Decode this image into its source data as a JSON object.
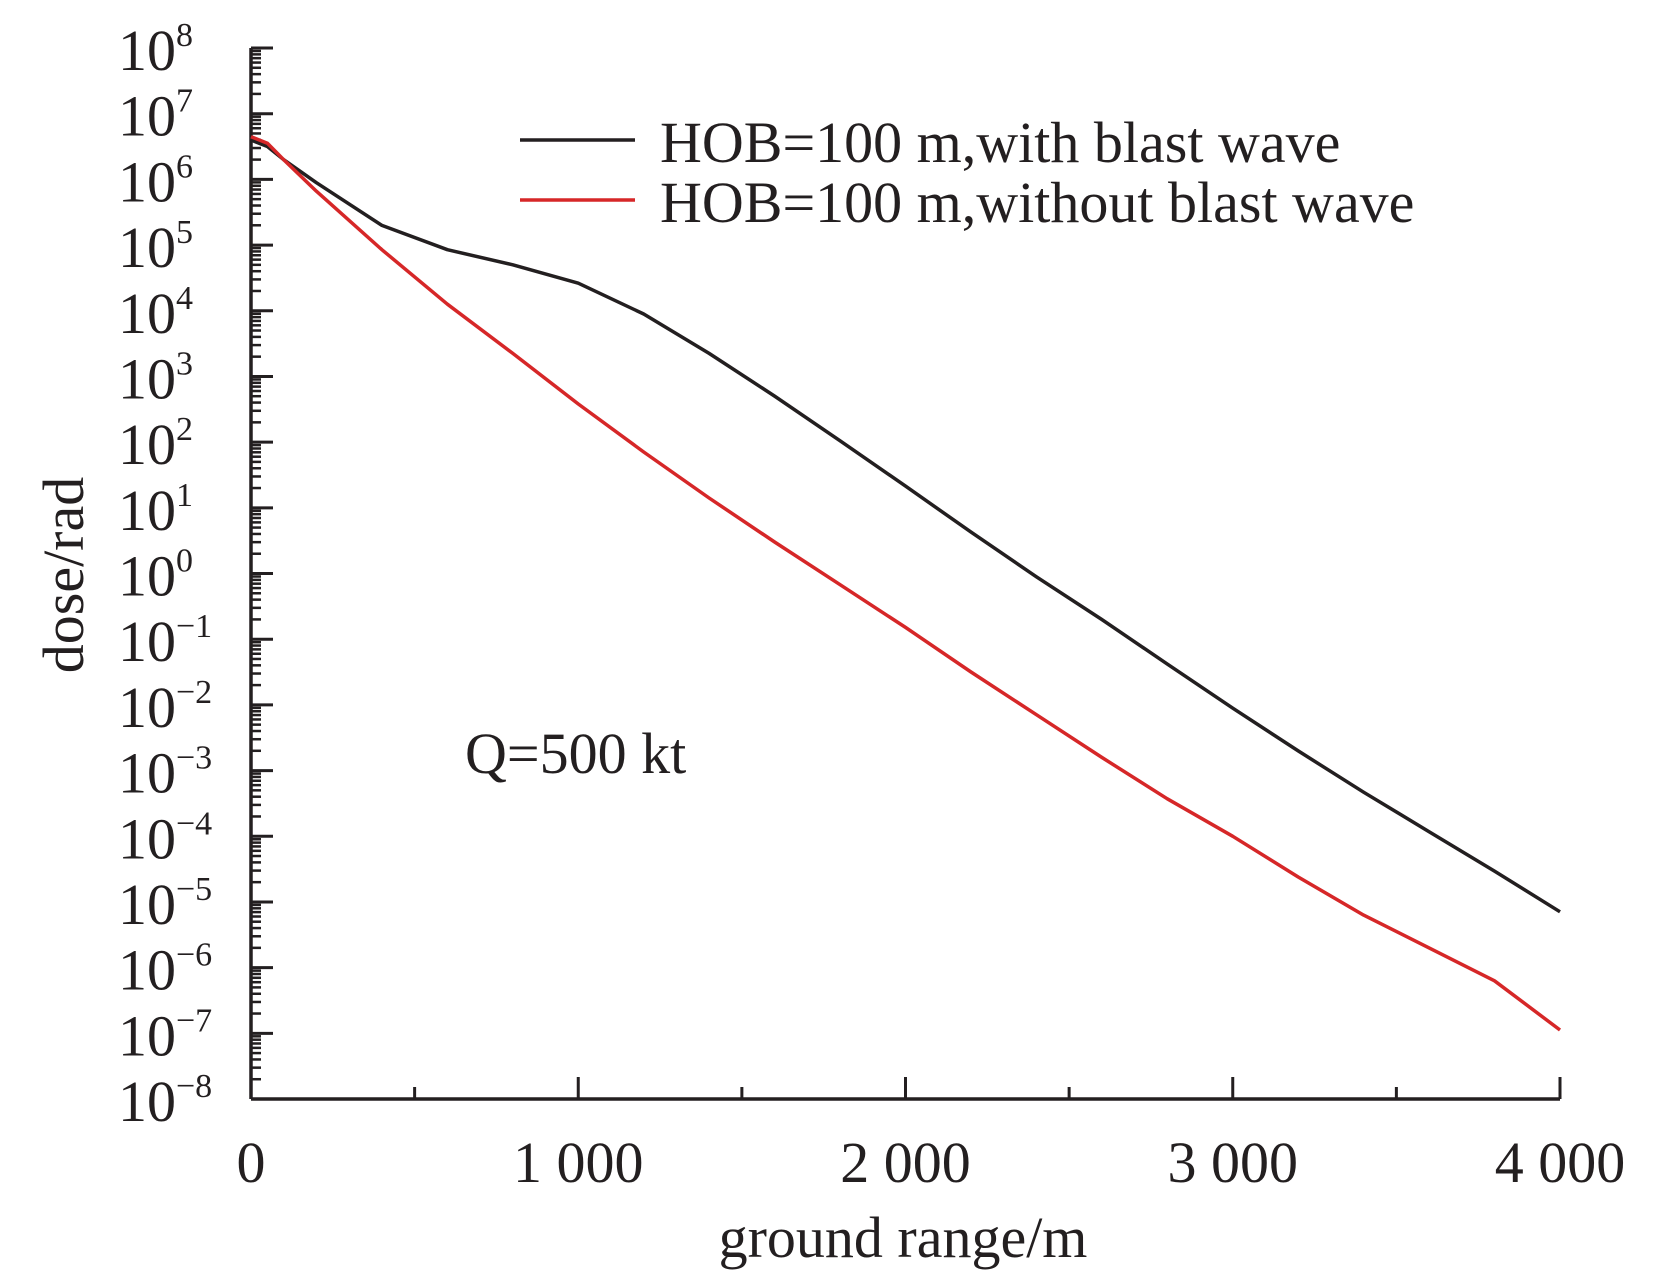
{
  "chart_data": {
    "type": "line",
    "xlabel": "ground range/m",
    "ylabel": "dose/rad",
    "xlim": [
      0,
      4000
    ],
    "ylim_log10": [
      -8,
      8
    ],
    "y_scale": "log",
    "grid": false,
    "legend_placement": "top-right",
    "x_ticks": [
      {
        "value": 0,
        "label": "0"
      },
      {
        "value": 1000,
        "label": "1 000"
      },
      {
        "value": 2000,
        "label": "2 000"
      },
      {
        "value": 3000,
        "label": "3 000"
      },
      {
        "value": 4000,
        "label": "4 000"
      }
    ],
    "y_tick_base": "10",
    "y_tick_exponents": [
      "8",
      "7",
      "6",
      "5",
      "4",
      "3",
      "2",
      "1",
      "0",
      "−1",
      "−2",
      "−3",
      "−4",
      "−5",
      "−6",
      "−7",
      "−8"
    ],
    "annotation": "Q=500 kt",
    "series": [
      {
        "name": "HOB=100 m,with blast wave",
        "color": "#231f20",
        "x": [
          0,
          50,
          100,
          200,
          400,
          600,
          800,
          1000,
          1200,
          1400,
          1600,
          1800,
          2000,
          2200,
          2400,
          2600,
          2800,
          3000,
          3200,
          3400,
          3600,
          3800,
          4000
        ],
        "log10_y": [
          6.6,
          6.5,
          6.3,
          5.95,
          5.3,
          4.93,
          4.7,
          4.42,
          3.95,
          3.35,
          2.7,
          2.02,
          1.33,
          0.63,
          -0.05,
          -0.7,
          -1.38,
          -2.05,
          -2.7,
          -3.33,
          -3.93,
          -4.53,
          -5.15
        ]
      },
      {
        "name": "HOB=100 m,without blast wave",
        "color": "#d62728",
        "x": [
          0,
          50,
          100,
          200,
          400,
          600,
          800,
          1000,
          1200,
          1400,
          1600,
          1800,
          2000,
          2200,
          2400,
          2600,
          2800,
          3000,
          3200,
          3400,
          3600,
          3800,
          4000
        ],
        "log10_y": [
          6.65,
          6.55,
          6.3,
          5.82,
          4.93,
          4.1,
          3.35,
          2.58,
          1.85,
          1.15,
          0.48,
          -0.17,
          -0.82,
          -1.5,
          -2.15,
          -2.8,
          -3.43,
          -4.0,
          -4.62,
          -5.2,
          -5.7,
          -6.2,
          -6.95
        ]
      }
    ]
  }
}
